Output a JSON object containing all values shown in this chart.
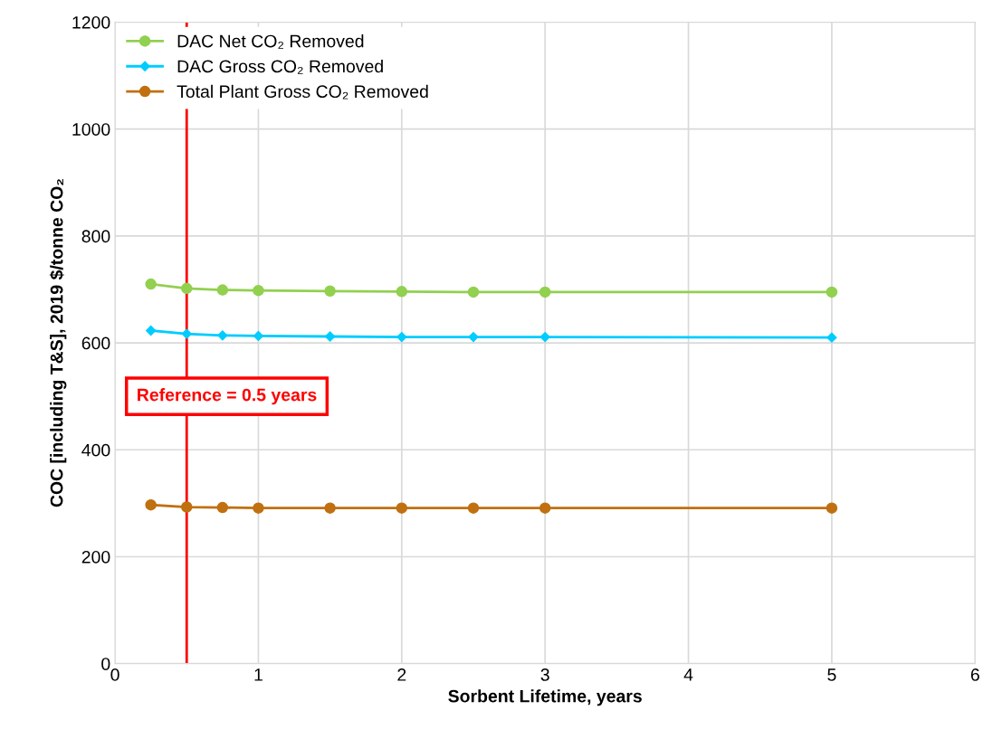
{
  "chart_data": {
    "type": "line",
    "xlabel": "Sorbent Lifetime, years",
    "ylabel": "COC [including T&S], 2019 $/tonne CO₂",
    "x": [
      0.25,
      0.5,
      0.75,
      1,
      1.5,
      2,
      2.5,
      3,
      5
    ],
    "series": [
      {
        "name": "DAC Net CO₂ Removed",
        "color": "#92d050",
        "marker": "circle",
        "values": [
          710,
          702,
          699,
          698,
          697,
          696,
          695,
          695,
          695
        ]
      },
      {
        "name": "DAC Gross CO₂ Removed",
        "color": "#00ccff",
        "marker": "diamond",
        "values": [
          623,
          617,
          614,
          613,
          612,
          611,
          611,
          611,
          610
        ]
      },
      {
        "name": "Total Plant Gross CO₂ Removed",
        "color": "#c07010",
        "marker": "circle",
        "values": [
          297,
          293,
          292,
          291,
          291,
          291,
          291,
          291,
          291
        ]
      }
    ],
    "xlim": [
      0,
      6
    ],
    "xticks": [
      0,
      1,
      2,
      3,
      4,
      5,
      6
    ],
    "ylim": [
      0,
      1200
    ],
    "yticks": [
      0,
      200,
      400,
      600,
      800,
      1000,
      1200
    ],
    "grid": true,
    "legend": "top left",
    "line_style": "solid",
    "ref_lines": [
      {
        "axis": "x",
        "value": 0.5,
        "label": "Reference = 0.5 years",
        "color": "#ff0000"
      }
    ]
  }
}
